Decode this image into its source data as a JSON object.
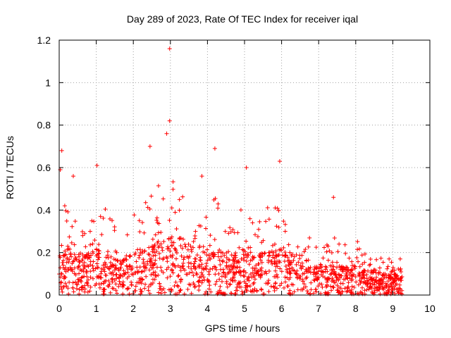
{
  "chart_data": {
    "type": "scatter",
    "title": "Day 289 of 2023, Rate Of TEC Index for receiver iqal",
    "xlabel": "GPS time / hours",
    "ylabel": "ROTI / TECUs",
    "xlim": [
      0,
      10
    ],
    "ylim": [
      0,
      1.2
    ],
    "xticks": [
      0,
      1,
      2,
      3,
      4,
      5,
      6,
      7,
      8,
      9,
      10
    ],
    "xtick_labels": [
      "0",
      "1",
      "2",
      "3",
      "4",
      "5",
      "6",
      "7",
      "8",
      "9",
      "10"
    ],
    "yticks": [
      0,
      0.2,
      0.4,
      0.6,
      0.8,
      1,
      1.2
    ],
    "ytick_labels": [
      "0",
      "0.2",
      "0.4",
      "0.6",
      "0.8",
      "1",
      "1.2"
    ],
    "grid": true,
    "marker": "+",
    "series": [
      {
        "name": "ROTI",
        "color": "#ff0000",
        "x_range": [
          0,
          9.25
        ],
        "notable_points": [
          {
            "x": 2.98,
            "y": 1.16
          },
          {
            "x": 2.98,
            "y": 0.82
          },
          {
            "x": 2.9,
            "y": 0.76
          },
          {
            "x": 0.07,
            "y": 0.68
          },
          {
            "x": 2.45,
            "y": 0.7
          },
          {
            "x": 4.2,
            "y": 0.69
          },
          {
            "x": 5.95,
            "y": 0.63
          },
          {
            "x": 1.02,
            "y": 0.61
          },
          {
            "x": 5.05,
            "y": 0.6
          },
          {
            "x": 0.03,
            "y": 0.59
          },
          {
            "x": 0.38,
            "y": 0.56
          },
          {
            "x": 3.85,
            "y": 0.56
          },
          {
            "x": 7.4,
            "y": 0.46
          },
          {
            "x": 8.9,
            "y": 0.17
          },
          {
            "x": 9.2,
            "y": 0.17
          }
        ],
        "envelope": [
          {
            "x": 0.0,
            "upper": 0.5,
            "typical": 0.12
          },
          {
            "x": 0.25,
            "upper": 0.45,
            "typical": 0.12
          },
          {
            "x": 0.5,
            "upper": 0.32,
            "typical": 0.1
          },
          {
            "x": 0.75,
            "upper": 0.28,
            "typical": 0.1
          },
          {
            "x": 1.0,
            "upper": 0.5,
            "typical": 0.11
          },
          {
            "x": 1.25,
            "upper": 0.42,
            "typical": 0.1
          },
          {
            "x": 1.5,
            "upper": 0.33,
            "typical": 0.09
          },
          {
            "x": 1.75,
            "upper": 0.28,
            "typical": 0.09
          },
          {
            "x": 2.0,
            "upper": 0.45,
            "typical": 0.1
          },
          {
            "x": 2.25,
            "upper": 0.4,
            "typical": 0.11
          },
          {
            "x": 2.5,
            "upper": 0.52,
            "typical": 0.12
          },
          {
            "x": 2.75,
            "upper": 0.6,
            "typical": 0.13
          },
          {
            "x": 3.0,
            "upper": 0.6,
            "typical": 0.14
          },
          {
            "x": 3.25,
            "upper": 0.5,
            "typical": 0.14
          },
          {
            "x": 3.5,
            "upper": 0.42,
            "typical": 0.13
          },
          {
            "x": 3.75,
            "upper": 0.38,
            "typical": 0.12
          },
          {
            "x": 4.0,
            "upper": 0.42,
            "typical": 0.11
          },
          {
            "x": 4.25,
            "upper": 0.5,
            "typical": 0.11
          },
          {
            "x": 4.5,
            "upper": 0.38,
            "typical": 0.1
          },
          {
            "x": 4.75,
            "upper": 0.33,
            "typical": 0.1
          },
          {
            "x": 5.0,
            "upper": 0.52,
            "typical": 0.11
          },
          {
            "x": 5.25,
            "upper": 0.38,
            "typical": 0.1
          },
          {
            "x": 5.5,
            "upper": 0.33,
            "typical": 0.1
          },
          {
            "x": 5.75,
            "upper": 0.5,
            "typical": 0.11
          },
          {
            "x": 6.0,
            "upper": 0.4,
            "typical": 0.11
          },
          {
            "x": 6.25,
            "upper": 0.26,
            "typical": 0.1
          },
          {
            "x": 6.5,
            "upper": 0.22,
            "typical": 0.09
          },
          {
            "x": 6.75,
            "upper": 0.3,
            "typical": 0.08
          },
          {
            "x": 7.0,
            "upper": 0.22,
            "typical": 0.07
          },
          {
            "x": 7.25,
            "upper": 0.25,
            "typical": 0.07
          },
          {
            "x": 7.5,
            "upper": 0.35,
            "typical": 0.07
          },
          {
            "x": 7.75,
            "upper": 0.22,
            "typical": 0.07
          },
          {
            "x": 8.0,
            "upper": 0.28,
            "typical": 0.07
          },
          {
            "x": 8.25,
            "upper": 0.2,
            "typical": 0.06
          },
          {
            "x": 8.5,
            "upper": 0.18,
            "typical": 0.06
          },
          {
            "x": 8.75,
            "upper": 0.2,
            "typical": 0.05
          },
          {
            "x": 9.0,
            "upper": 0.17,
            "typical": 0.05
          },
          {
            "x": 9.25,
            "upper": 0.17,
            "typical": 0.05
          }
        ]
      }
    ]
  }
}
